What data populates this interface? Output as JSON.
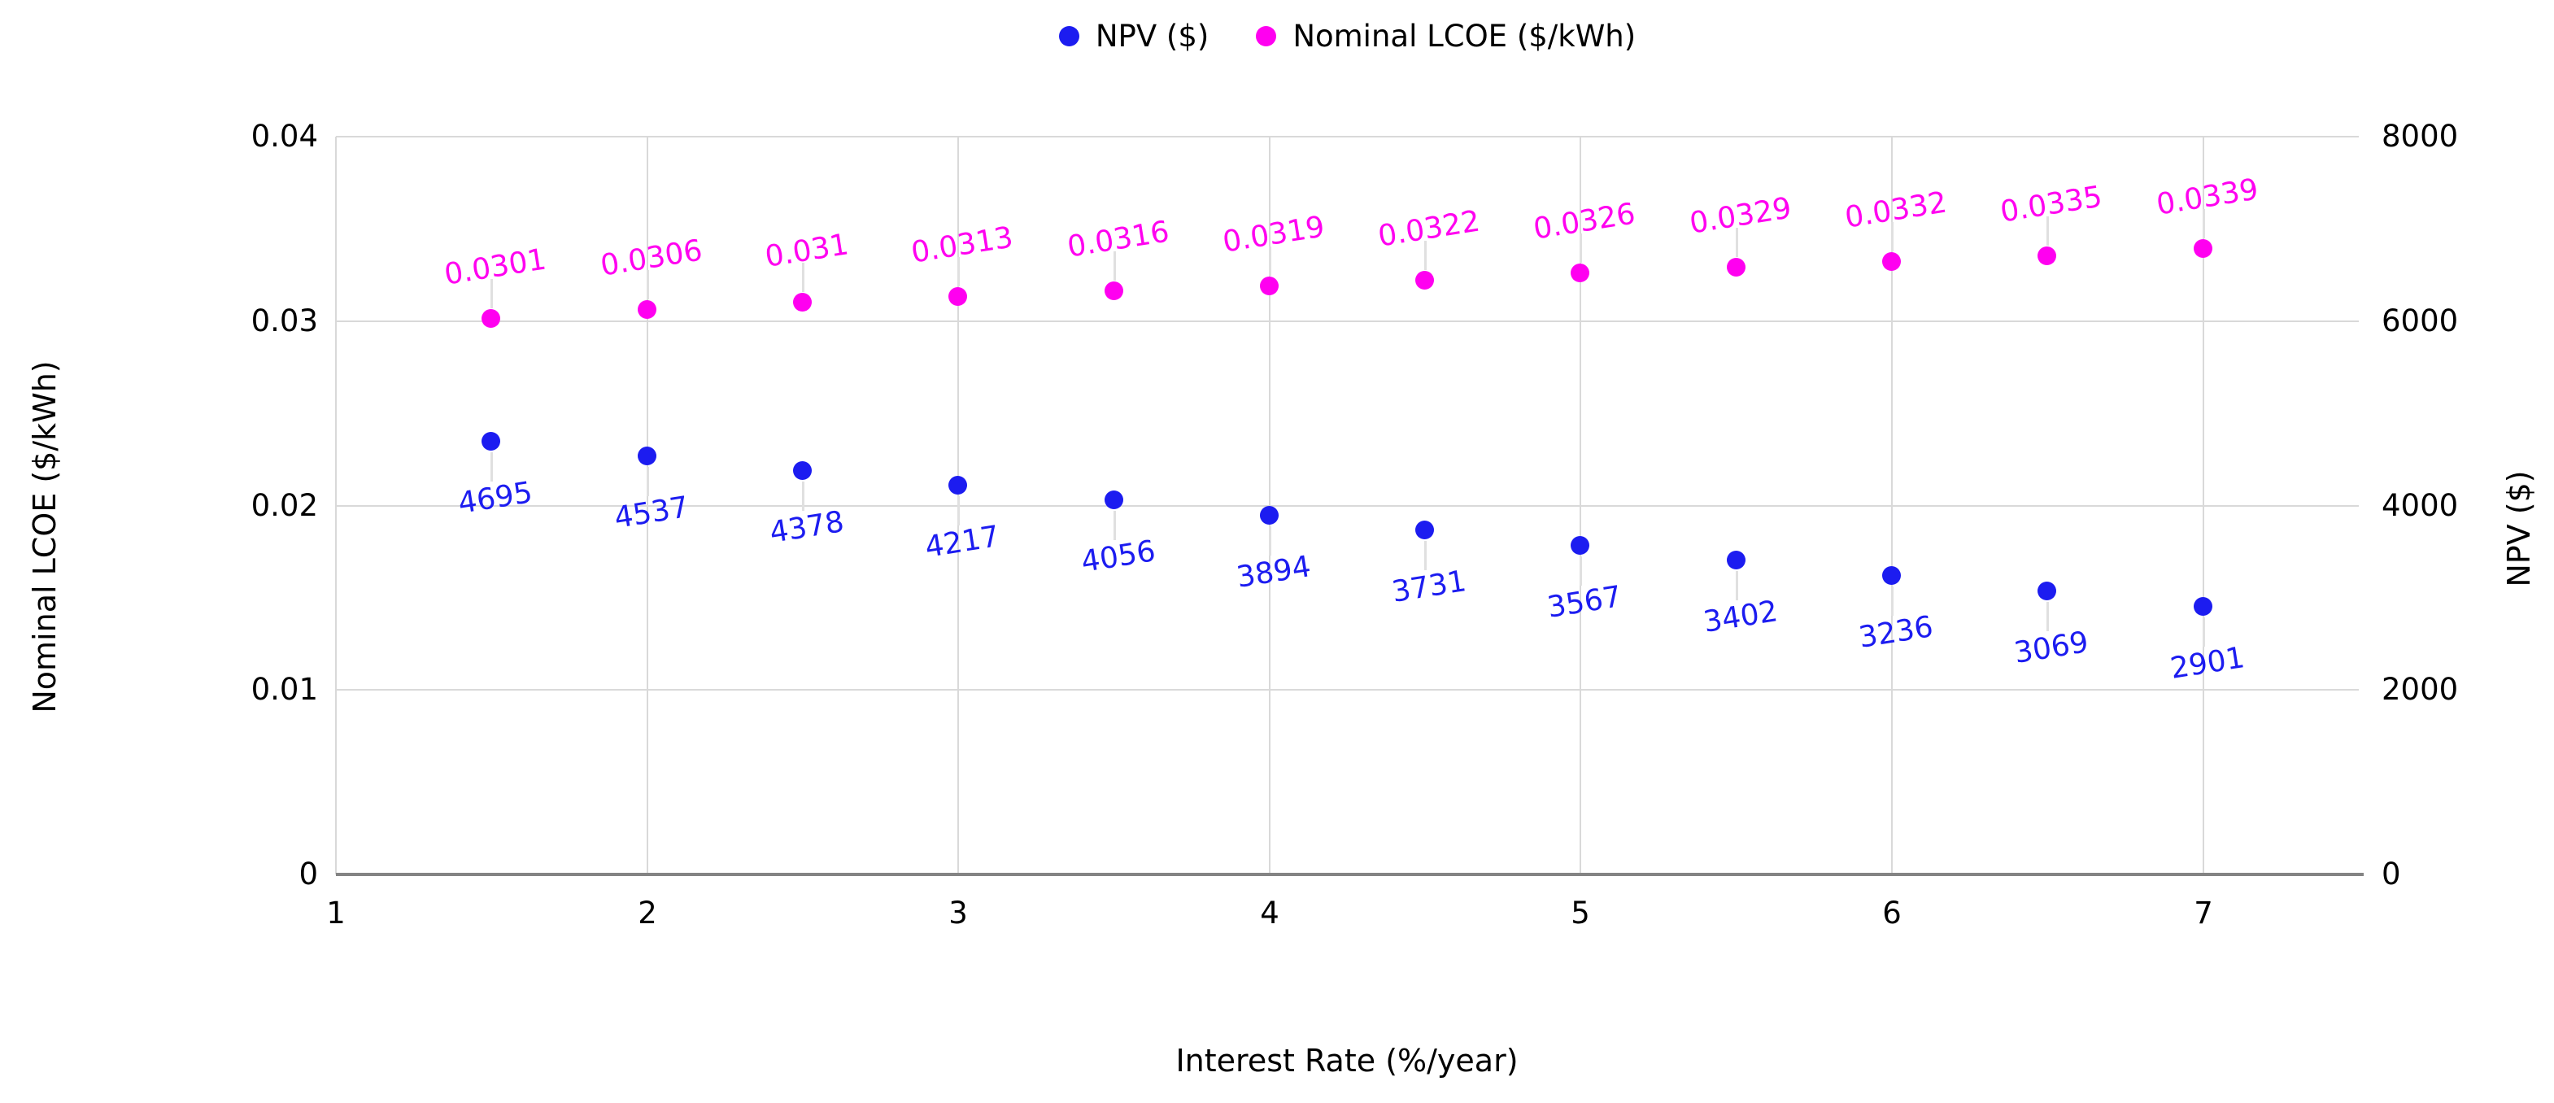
{
  "chart_data": {
    "type": "scatter",
    "xlabel": "Interest Rate (%/year)",
    "ylabel_left": "Nominal LCOE ($/kWh)",
    "ylabel_right": "NPV ($)",
    "grid": "on",
    "legend_position": "top-center",
    "x": [
      1.5,
      2,
      2.5,
      3,
      3.5,
      4,
      4.5,
      5,
      5.5,
      6,
      6.5,
      7
    ],
    "series": [
      {
        "name": "NPV ($)",
        "axis": "right",
        "color": "#1c1cf0",
        "label_position": "below",
        "values": [
          4695,
          4537,
          4378,
          4217,
          4056,
          3894,
          3731,
          3567,
          3402,
          3236,
          3069,
          2901
        ],
        "labels": [
          "4695",
          "4537",
          "4378",
          "4217",
          "4056",
          "3894",
          "3731",
          "3567",
          "3402",
          "3236",
          "3069",
          "2901"
        ]
      },
      {
        "name": "Nominal LCOE ($/kWh)",
        "axis": "left",
        "color": "#ff00f0",
        "label_position": "above",
        "values": [
          0.0301,
          0.0306,
          0.031,
          0.0313,
          0.0316,
          0.0319,
          0.0322,
          0.0326,
          0.0329,
          0.0332,
          0.0335,
          0.0339
        ],
        "labels": [
          "0.0301",
          "0.0306",
          "0.031",
          "0.0313",
          "0.0316",
          "0.0319",
          "0.0322",
          "0.0326",
          "0.0329",
          "0.0332",
          "0.0335",
          "0.0339"
        ]
      }
    ],
    "axes": {
      "x": {
        "min": 1,
        "max": 7.5,
        "tick_values": [
          1,
          2,
          3,
          4,
          5,
          6,
          7
        ],
        "tick_labels": [
          "1",
          "2",
          "3",
          "4",
          "5",
          "6",
          "7"
        ]
      },
      "left": {
        "min": 0,
        "max": 0.04,
        "tick_values": [
          0,
          0.01,
          0.02,
          0.03,
          0.04
        ],
        "tick_labels": [
          "0",
          "0.01",
          "0.02",
          "0.03",
          "0.04"
        ]
      },
      "right": {
        "min": 0,
        "max": 8000,
        "tick_values": [
          0,
          2000,
          4000,
          6000,
          8000
        ],
        "tick_labels": [
          "0",
          "2000",
          "4000",
          "6000",
          "8000"
        ]
      }
    },
    "legend": [
      {
        "label": "NPV ($)",
        "color": "#1c1cf0"
      },
      {
        "label": "Nominal LCOE ($/kWh)",
        "color": "#ff00f0"
      }
    ],
    "colors": {
      "gridline": "#d9d9d9",
      "axis_line": "#848484",
      "leader_line": "#e0e0e0",
      "text": "#000000"
    }
  }
}
